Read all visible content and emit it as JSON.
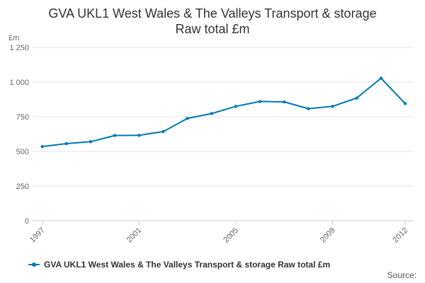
{
  "colors": {
    "series": "#0077b6",
    "grid": "#e6e6e6",
    "axis": "#c0d0e0"
  },
  "source_label": "Source:",
  "chart_data": {
    "type": "line",
    "title_lines": [
      "GVA UKL1 West Wales & The Valleys Transport & storage",
      "Raw total £m"
    ],
    "ylabel": "£m",
    "xlabel": "",
    "ylim": [
      0,
      1250
    ],
    "y_ticks": [
      0,
      250,
      500,
      750,
      1000,
      1250
    ],
    "y_tick_labels": [
      "0",
      "250",
      "500",
      "750",
      "1 000",
      "1 250"
    ],
    "x_ticks": [
      "1997",
      "2001",
      "2005",
      "2009",
      "2012"
    ],
    "grid": true,
    "legend_position": "bottom-left",
    "series": [
      {
        "name": "GVA UKL1 West Wales & The Valleys Transport & storage Raw total £m",
        "x": [
          1997,
          1998,
          1999,
          2000,
          2001,
          2002,
          2003,
          2004,
          2005,
          2006,
          2007,
          2008,
          2009,
          2010,
          2011,
          2012
        ],
        "values": [
          535,
          556,
          570,
          615,
          616,
          643,
          738,
          773,
          825,
          860,
          857,
          808,
          825,
          885,
          1028,
          845
        ]
      }
    ]
  }
}
